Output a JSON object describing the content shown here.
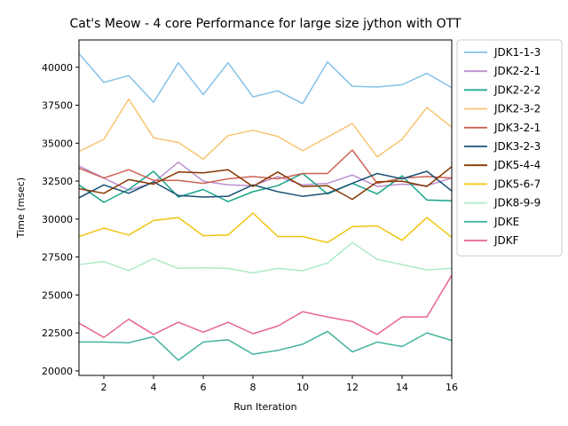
{
  "chart_data": {
    "type": "line",
    "title": "Cat's Meow - 4 core Performance for large size jython with OTT",
    "xlabel": "Run Iteration",
    "ylabel": "Time (msec)",
    "xlim": [
      1,
      16
    ],
    "ylim": [
      19700,
      41800
    ],
    "xticks": [
      2,
      4,
      6,
      8,
      10,
      12,
      14,
      16
    ],
    "yticks": [
      20000,
      22500,
      25000,
      27500,
      30000,
      32500,
      35000,
      37500,
      40000
    ],
    "legend": "outside-right",
    "grid": false,
    "x": [
      1,
      2,
      3,
      4,
      5,
      6,
      7,
      8,
      9,
      10,
      11,
      12,
      13,
      14,
      15,
      16
    ],
    "series": [
      {
        "name": "JDK1-1-3",
        "color": "#85c1e9",
        "values": [
          40900,
          39000,
          39450,
          37700,
          40300,
          38200,
          40300,
          38050,
          38450,
          37600,
          40350,
          38750,
          38700,
          38850,
          39600,
          38650
        ]
      },
      {
        "name": "JDK2-2-1",
        "color": "#bb8fce",
        "values": [
          33500,
          32700,
          31900,
          32400,
          33750,
          32500,
          32250,
          32200,
          32800,
          32250,
          32350,
          32900,
          32150,
          32300,
          32200,
          32700
        ]
      },
      {
        "name": "JDK2-2-2",
        "color": "#17a589",
        "values": [
          32250,
          31100,
          31950,
          33150,
          31450,
          31950,
          31150,
          31800,
          32200,
          33000,
          31650,
          32350,
          31650,
          32850,
          31250,
          31200
        ]
      },
      {
        "name": "JDK2-3-2",
        "color": "#f8c471",
        "values": [
          34450,
          35250,
          37900,
          35350,
          35050,
          33950,
          35500,
          35850,
          35450,
          34500,
          35400,
          36300,
          34100,
          35250,
          37350,
          36050
        ]
      },
      {
        "name": "JDK3-2-1",
        "color": "#cd6155",
        "values": [
          33350,
          32700,
          33250,
          32550,
          32550,
          32350,
          32650,
          32800,
          32650,
          33000,
          33000,
          34550,
          32350,
          32700,
          32800,
          32700
        ]
      },
      {
        "name": "JDK3-2-3",
        "color": "#1a5276",
        "values": [
          31400,
          32250,
          31700,
          32450,
          31550,
          31450,
          31500,
          32250,
          31800,
          31500,
          31700,
          32350,
          33000,
          32650,
          33150,
          31850
        ]
      },
      {
        "name": "JDK5-4-4",
        "color": "#873600",
        "values": [
          32000,
          31700,
          32600,
          32300,
          33100,
          33050,
          33250,
          32150,
          33100,
          32150,
          32200,
          31300,
          32450,
          32500,
          32150,
          33450
        ]
      },
      {
        "name": "JDK5-6-7",
        "color": "#f1c40f",
        "values": [
          28850,
          29400,
          28950,
          29900,
          30100,
          28900,
          28950,
          30400,
          28850,
          28850,
          28450,
          29500,
          29550,
          28600,
          30100,
          28800
        ]
      },
      {
        "name": "JDK8-9-9",
        "color": "#abebc6",
        "values": [
          27000,
          27200,
          26600,
          27400,
          26750,
          26800,
          26750,
          26450,
          26750,
          26600,
          27100,
          28450,
          27350,
          27000,
          26650,
          26750
        ]
      },
      {
        "name": "JDKE",
        "color": "#45b39d",
        "values": [
          21900,
          21900,
          21850,
          22250,
          20700,
          21900,
          22050,
          21100,
          21350,
          21750,
          22600,
          21250,
          21900,
          21600,
          22500,
          22000
        ]
      },
      {
        "name": "JDKF",
        "color": "#e8668a",
        "values": [
          23150,
          22200,
          23400,
          22400,
          23200,
          22550,
          23200,
          22450,
          22950,
          23900,
          23550,
          23250,
          22400,
          23550,
          23550,
          26300
        ]
      }
    ]
  }
}
